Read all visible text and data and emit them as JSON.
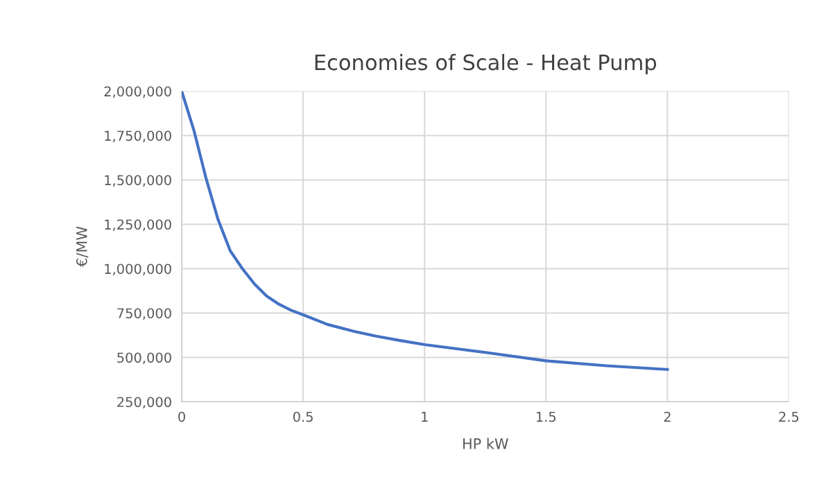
{
  "chart_data": {
    "type": "line",
    "title": "Economies of Scale - Heat Pump",
    "xlabel": "HP kW",
    "ylabel": "€/MW",
    "series": [
      {
        "color": "#4472c4",
        "x": [
          0,
          0.05,
          0.1,
          0.15,
          0.2,
          0.25,
          0.3,
          0.35,
          0.4,
          0.45,
          0.5,
          0.6,
          0.7,
          0.8,
          0.9,
          1.0,
          1.25,
          1.5,
          1.75,
          2.0
        ],
        "values": [
          2000000,
          1780000,
          1510000,
          1275000,
          1100000,
          1000000,
          913000,
          846000,
          800000,
          766000,
          740000,
          686000,
          650000,
          620000,
          595000,
          572000,
          528000,
          481000,
          453000,
          432000
        ]
      }
    ],
    "xlim": [
      0,
      2.5
    ],
    "xticks": [
      0,
      0.5,
      1,
      1.5,
      2,
      2.5
    ],
    "ylim": [
      250000,
      2000000
    ],
    "yticks": [
      {
        "value": 250000,
        "label": "250,000"
      },
      {
        "value": 500000,
        "label": "500,000"
      },
      {
        "value": 750000,
        "label": "750,000"
      },
      {
        "value": 1000000,
        "label": "1,000,000"
      },
      {
        "value": 1250000,
        "label": "1,250,000"
      },
      {
        "value": 1500000,
        "label": "1,500,000"
      },
      {
        "value": 1750000,
        "label": "1,750,000"
      },
      {
        "value": 2000000,
        "label": "2,000,000"
      }
    ],
    "grid": true,
    "marker": "none",
    "line_style": "solid"
  }
}
